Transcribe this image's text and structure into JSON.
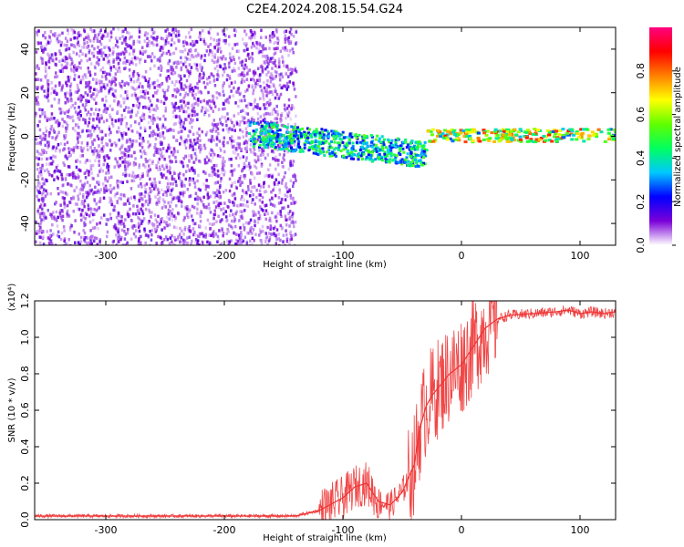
{
  "title": "C2E4.2024.208.15.54.G24",
  "chart_data": [
    {
      "type": "heatmap",
      "xlabel": "Height of straight line (km)",
      "ylabel": "Frequency (Hz)",
      "xlim": [
        -360,
        130
      ],
      "ylim": [
        -50,
        50
      ],
      "xticks": [
        -300,
        -200,
        -100,
        0,
        100
      ],
      "yticks": [
        -40,
        -20,
        0,
        20,
        40
      ],
      "colorbar": {
        "label": "Normalized spectral amplitude",
        "range": [
          0.0,
          1.0
        ],
        "ticks": [
          0.0,
          0.2,
          0.4,
          0.6,
          0.8
        ],
        "tick_labels": [
          "0.0",
          "0.2",
          "0.4",
          "0.6",
          "0.8"
        ],
        "colors": [
          "#ffffff",
          "#7b00d8",
          "#0000ff",
          "#00c8ff",
          "#00ff60",
          "#60ff00",
          "#ffff00",
          "#ff8000",
          "#ff0000",
          "#ff0080"
        ]
      },
      "features": [
        {
          "region": "noise",
          "x_range": [
            -360,
            -140
          ],
          "freq_range": [
            -50,
            50
          ],
          "amplitude": 0.1
        },
        {
          "region": "chirp_band",
          "x_range": [
            -180,
            -30
          ],
          "freq_at_start": 2,
          "freq_at_end": -8,
          "amplitude": 0.4
        },
        {
          "region": "tone",
          "x_range": [
            -30,
            130
          ],
          "freq": 1,
          "amplitude": 0.7
        }
      ]
    },
    {
      "type": "line",
      "xlabel": "Height of straight line (km)",
      "ylabel": "SNR (10 * v/v)",
      "multiplier": "(x10⁴)",
      "xlim": [
        -360,
        130
      ],
      "ylim": [
        0.0,
        1.2
      ],
      "xticks": [
        -300,
        -200,
        -100,
        0,
        100
      ],
      "yticks": [
        0.0,
        0.2,
        0.4,
        0.6,
        0.8,
        1.0,
        1.2
      ],
      "ytick_labels": [
        "0.0",
        "0.2",
        "0.4",
        "0.6",
        "0.8",
        "1.0",
        "1.2"
      ],
      "series": [
        {
          "name": "SNR",
          "color": "#ee3333",
          "x": [
            -360,
            -300,
            -200,
            -140,
            -120,
            -100,
            -90,
            -80,
            -70,
            -60,
            -50,
            -40,
            -35,
            -30,
            -25,
            -20,
            -10,
            0,
            10,
            20,
            30,
            40,
            60,
            80,
            90,
            100,
            110,
            120,
            130
          ],
          "y": [
            0.02,
            0.02,
            0.02,
            0.02,
            0.05,
            0.12,
            0.18,
            0.2,
            0.1,
            0.08,
            0.15,
            0.3,
            0.5,
            0.62,
            0.68,
            0.72,
            0.8,
            0.85,
            0.95,
            1.05,
            1.1,
            1.12,
            1.13,
            1.14,
            1.15,
            1.13,
            1.14,
            1.13,
            1.14
          ]
        }
      ]
    }
  ]
}
